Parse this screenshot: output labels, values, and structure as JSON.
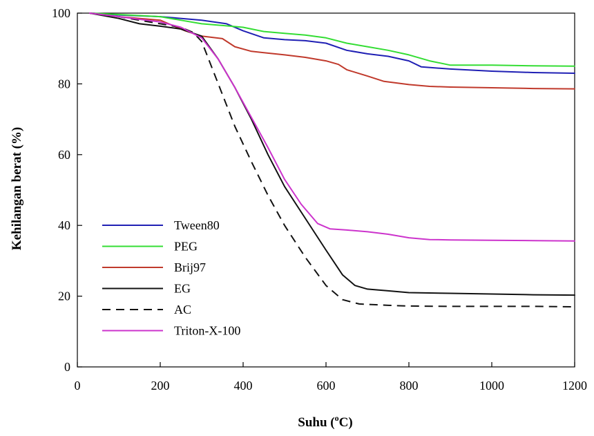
{
  "chart_data": {
    "type": "line",
    "title": "",
    "xlabel": "Suhu (",
    "xlabel_sup": "o",
    "xlabel_tail": "C)",
    "ylabel": "Kehilangan berat (%)",
    "xlim": [
      0,
      1200
    ],
    "ylim": [
      0,
      100
    ],
    "xticks": [
      0,
      200,
      400,
      600,
      800,
      1000,
      1200
    ],
    "yticks": [
      0,
      20,
      40,
      60,
      80,
      100
    ],
    "grid": false,
    "legend_position": "lower-left",
    "series": [
      {
        "name": "Tween80",
        "color": "#1f1fb4",
        "dash": "solid",
        "points": [
          [
            30,
            100
          ],
          [
            100,
            99.5
          ],
          [
            200,
            99
          ],
          [
            300,
            98
          ],
          [
            360,
            97
          ],
          [
            400,
            95
          ],
          [
            450,
            93
          ],
          [
            500,
            92.5
          ],
          [
            550,
            92.2
          ],
          [
            600,
            91.5
          ],
          [
            650,
            89.5
          ],
          [
            700,
            88.5
          ],
          [
            750,
            87.8
          ],
          [
            800,
            86.5
          ],
          [
            830,
            84.8
          ],
          [
            900,
            84.2
          ],
          [
            1000,
            83.6
          ],
          [
            1100,
            83.2
          ],
          [
            1200,
            83
          ]
        ]
      },
      {
        "name": "PEG",
        "color": "#33dd33",
        "dash": "solid",
        "points": [
          [
            30,
            100
          ],
          [
            100,
            99.6
          ],
          [
            200,
            99
          ],
          [
            260,
            97.8
          ],
          [
            300,
            97
          ],
          [
            360,
            96.4
          ],
          [
            400,
            96
          ],
          [
            450,
            94.8
          ],
          [
            500,
            94.3
          ],
          [
            550,
            93.8
          ],
          [
            600,
            93
          ],
          [
            650,
            91.5
          ],
          [
            700,
            90.5
          ],
          [
            750,
            89.5
          ],
          [
            800,
            88.2
          ],
          [
            850,
            86.5
          ],
          [
            900,
            85.3
          ],
          [
            1000,
            85.3
          ],
          [
            1100,
            85.1
          ],
          [
            1200,
            85
          ]
        ]
      },
      {
        "name": "Brij97",
        "color": "#c0392b",
        "dash": "solid",
        "points": [
          [
            30,
            100
          ],
          [
            100,
            99
          ],
          [
            200,
            98
          ],
          [
            260,
            95
          ],
          [
            300,
            93.5
          ],
          [
            350,
            92.8
          ],
          [
            380,
            90.5
          ],
          [
            420,
            89.2
          ],
          [
            460,
            88.7
          ],
          [
            500,
            88.2
          ],
          [
            550,
            87.5
          ],
          [
            600,
            86.5
          ],
          [
            630,
            85.5
          ],
          [
            650,
            84
          ],
          [
            700,
            82.2
          ],
          [
            740,
            80.7
          ],
          [
            800,
            79.8
          ],
          [
            850,
            79.3
          ],
          [
            900,
            79.1
          ],
          [
            1000,
            78.9
          ],
          [
            1100,
            78.7
          ],
          [
            1200,
            78.6
          ]
        ]
      },
      {
        "name": "EG",
        "color": "#111111",
        "dash": "solid",
        "points": [
          [
            30,
            100
          ],
          [
            100,
            98.5
          ],
          [
            150,
            97
          ],
          [
            200,
            96.3
          ],
          [
            250,
            95.5
          ],
          [
            300,
            93.5
          ],
          [
            340,
            87
          ],
          [
            380,
            79
          ],
          [
            420,
            70
          ],
          [
            460,
            60
          ],
          [
            500,
            51
          ],
          [
            550,
            42
          ],
          [
            600,
            33
          ],
          [
            640,
            26
          ],
          [
            670,
            23
          ],
          [
            700,
            22
          ],
          [
            750,
            21.5
          ],
          [
            800,
            21
          ],
          [
            900,
            20.8
          ],
          [
            1000,
            20.6
          ],
          [
            1100,
            20.4
          ],
          [
            1200,
            20.3
          ]
        ]
      },
      {
        "name": "AC",
        "color": "#111111",
        "dash": "12,8",
        "points": [
          [
            30,
            100
          ],
          [
            100,
            99
          ],
          [
            200,
            97
          ],
          [
            250,
            96
          ],
          [
            280,
            94.5
          ],
          [
            300,
            92
          ],
          [
            340,
            80
          ],
          [
            380,
            68
          ],
          [
            420,
            58
          ],
          [
            460,
            48.5
          ],
          [
            500,
            40
          ],
          [
            550,
            31
          ],
          [
            600,
            23
          ],
          [
            640,
            19
          ],
          [
            680,
            17.8
          ],
          [
            750,
            17.4
          ],
          [
            800,
            17.2
          ],
          [
            900,
            17.1
          ],
          [
            1000,
            17.1
          ],
          [
            1100,
            17.1
          ],
          [
            1200,
            17
          ]
        ]
      },
      {
        "name": "Triton-X-100",
        "color": "#cc33cc",
        "dash": "solid",
        "points": [
          [
            30,
            100
          ],
          [
            100,
            99
          ],
          [
            200,
            97.5
          ],
          [
            250,
            96
          ],
          [
            300,
            93
          ],
          [
            340,
            87
          ],
          [
            380,
            79
          ],
          [
            420,
            70.5
          ],
          [
            460,
            62
          ],
          [
            500,
            53
          ],
          [
            540,
            46
          ],
          [
            580,
            40.5
          ],
          [
            610,
            39
          ],
          [
            650,
            38.7
          ],
          [
            700,
            38.2
          ],
          [
            750,
            37.5
          ],
          [
            800,
            36.5
          ],
          [
            850,
            36
          ],
          [
            900,
            35.9
          ],
          [
            1000,
            35.8
          ],
          [
            1100,
            35.7
          ],
          [
            1200,
            35.6
          ]
        ]
      }
    ]
  }
}
